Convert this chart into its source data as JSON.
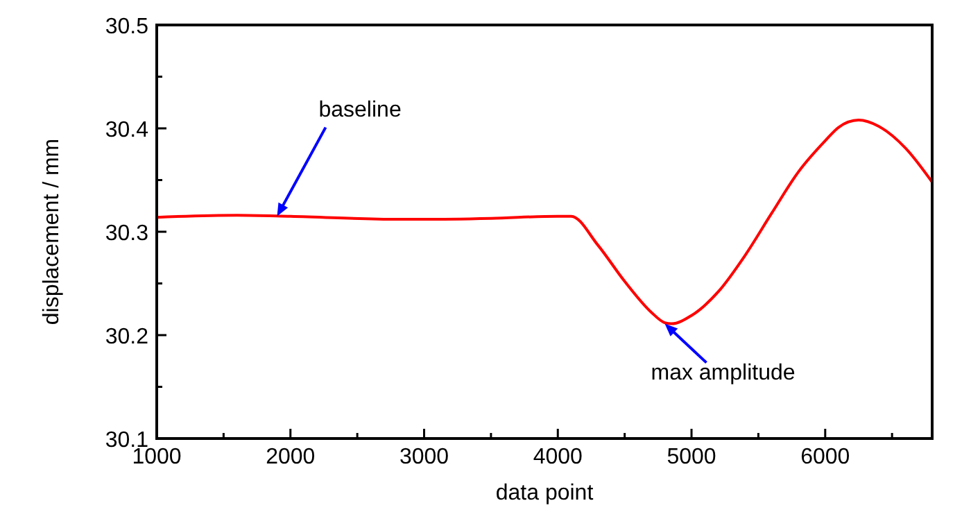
{
  "chart_data": {
    "type": "line",
    "xlabel": "data point",
    "ylabel": "displacement / mm",
    "x": [
      1000,
      1600,
      2000,
      2800,
      3000,
      3500,
      4000,
      4100,
      4300,
      4500,
      4700,
      4800,
      4850,
      5000,
      5200,
      5400,
      5600,
      5800,
      6000,
      6100,
      6250,
      6400,
      6600,
      6800
    ],
    "series": [
      {
        "color": "#ff0000",
        "values": [
          30.314,
          30.316,
          30.315,
          30.312,
          30.312,
          30.313,
          30.315,
          30.315,
          30.287,
          30.252,
          30.222,
          30.212,
          30.211,
          30.219,
          30.242,
          30.277,
          30.318,
          30.358,
          30.388,
          30.401,
          30.408,
          30.402,
          30.381,
          30.348
        ]
      }
    ],
    "xlim": [
      1000,
      6800
    ],
    "xticks": [
      1000,
      {
        "value": 1500,
        "label": null
      },
      2000,
      {
        "value": 2500,
        "label": null
      },
      3000,
      {
        "value": 3500,
        "label": null
      },
      4000,
      {
        "value": 4500,
        "label": null
      },
      5000,
      {
        "value": 5500,
        "label": null
      },
      6000,
      {
        "value": 6500,
        "label": null
      }
    ],
    "ylim": [
      30.1,
      30.5
    ],
    "yticks": [
      30.1,
      {
        "value": 30.15,
        "label": null
      },
      30.2,
      {
        "value": 30.25,
        "label": null
      },
      30.3,
      {
        "value": 30.35,
        "label": null
      },
      30.4,
      {
        "value": 30.45,
        "label": null
      },
      30.5
    ],
    "annotations": [
      {
        "text": "baseline",
        "x": 1900,
        "y": 30.315
      },
      {
        "text": "max amplitude",
        "x": 4800,
        "y": 30.211
      }
    ],
    "grid": false,
    "marker": "none",
    "line_style": "solid"
  }
}
